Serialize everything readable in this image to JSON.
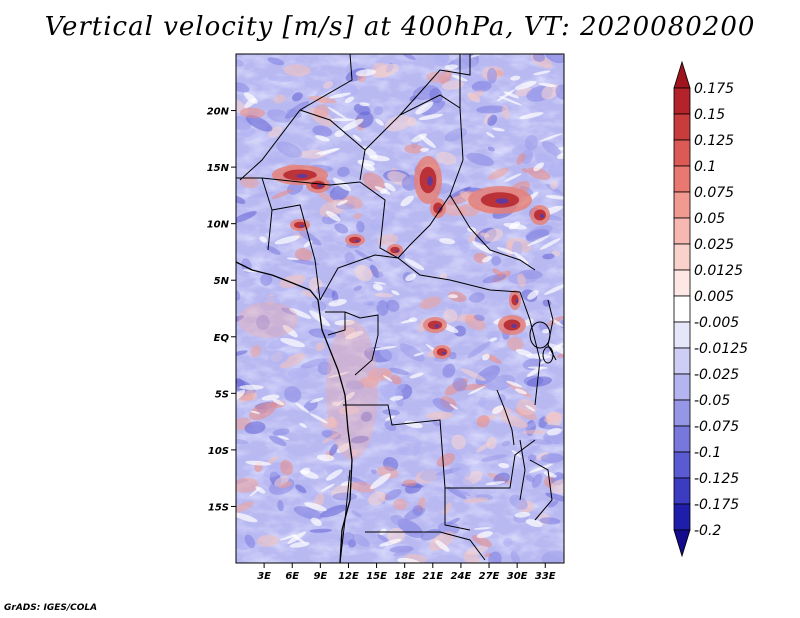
{
  "title": "Vertical velocity [m/s] at 400hPa, VT: 2020080200",
  "credit": "GrADS: IGES/COLA",
  "lat_labels": [
    "20N",
    "15N",
    "10N",
    "5N",
    "EQ",
    "5S",
    "10S",
    "15S"
  ],
  "lat_values": [
    20,
    15,
    10,
    5,
    0,
    -5,
    -10,
    -15
  ],
  "lon_labels": [
    "3E",
    "6E",
    "9E",
    "12E",
    "15E",
    "18E",
    "21E",
    "24E",
    "27E",
    "30E",
    "33E"
  ],
  "lon_values": [
    3,
    6,
    9,
    12,
    15,
    18,
    21,
    24,
    27,
    30,
    33
  ],
  "map_extent": {
    "lon_min": 0,
    "lon_max": 35,
    "lat_min": -20,
    "lat_max": 25
  },
  "colorbar": {
    "labels": [
      "0.175",
      "0.15",
      "0.125",
      "0.1",
      "0.075",
      "0.05",
      "0.025",
      "0.0125",
      "0.005",
      "-0.005",
      "-0.0125",
      "-0.025",
      "-0.05",
      "-0.075",
      "-0.1",
      "-0.125",
      "-0.175",
      "-0.2"
    ],
    "colors": [
      "#a0141e",
      "#b4232a",
      "#c83c3c",
      "#dc5a55",
      "#e87870",
      "#f09a90",
      "#f6b8b0",
      "#fad2cc",
      "#fde8e6",
      "#ffffff",
      "#e6e6fa",
      "#cdcdf5",
      "#b4b4f0",
      "#9696e6",
      "#7878dc",
      "#5a5ad2",
      "#3c3cc3",
      "#1e1eaa",
      "#140a8c"
    ]
  },
  "field": {
    "name": "vertical velocity",
    "units": "m/s",
    "level": "400hPa",
    "valid_time": "2020080200"
  }
}
